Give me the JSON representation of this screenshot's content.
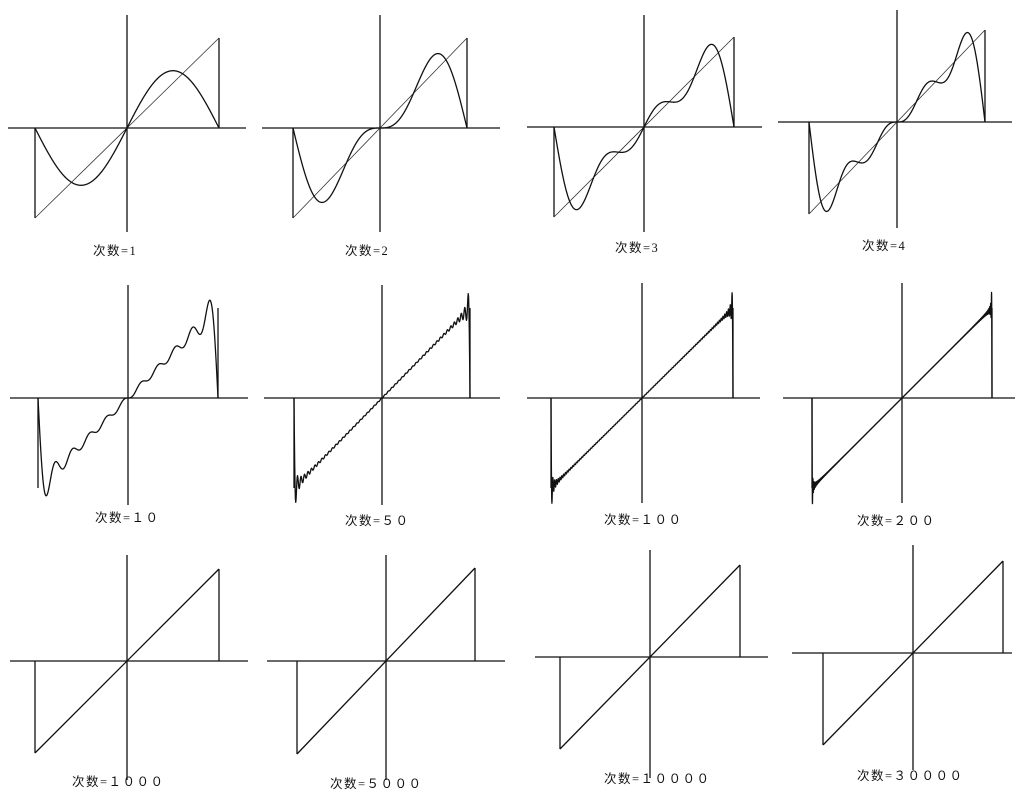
{
  "chart_data": {
    "type": "line",
    "caption_prefix": "次数=",
    "panels": [
      {
        "caption": "次数=1",
        "order": 1
      },
      {
        "caption": "次数=2",
        "order": 2
      },
      {
        "caption": "次数=3",
        "order": 3
      },
      {
        "caption": "次数=4",
        "order": 4
      },
      {
        "caption": "次数=１０",
        "order": 10
      },
      {
        "caption": "次数=５０",
        "order": 50
      },
      {
        "caption": "次数=１００",
        "order": 100
      },
      {
        "caption": "次数=２００",
        "order": 200
      },
      {
        "caption": "次数=１０００",
        "order": 1000
      },
      {
        "caption": "次数=５０００",
        "order": 5000
      },
      {
        "caption": "次数=１００００",
        "order": 10000
      },
      {
        "caption": "次数=３００００",
        "order": 30000
      }
    ]
  }
}
